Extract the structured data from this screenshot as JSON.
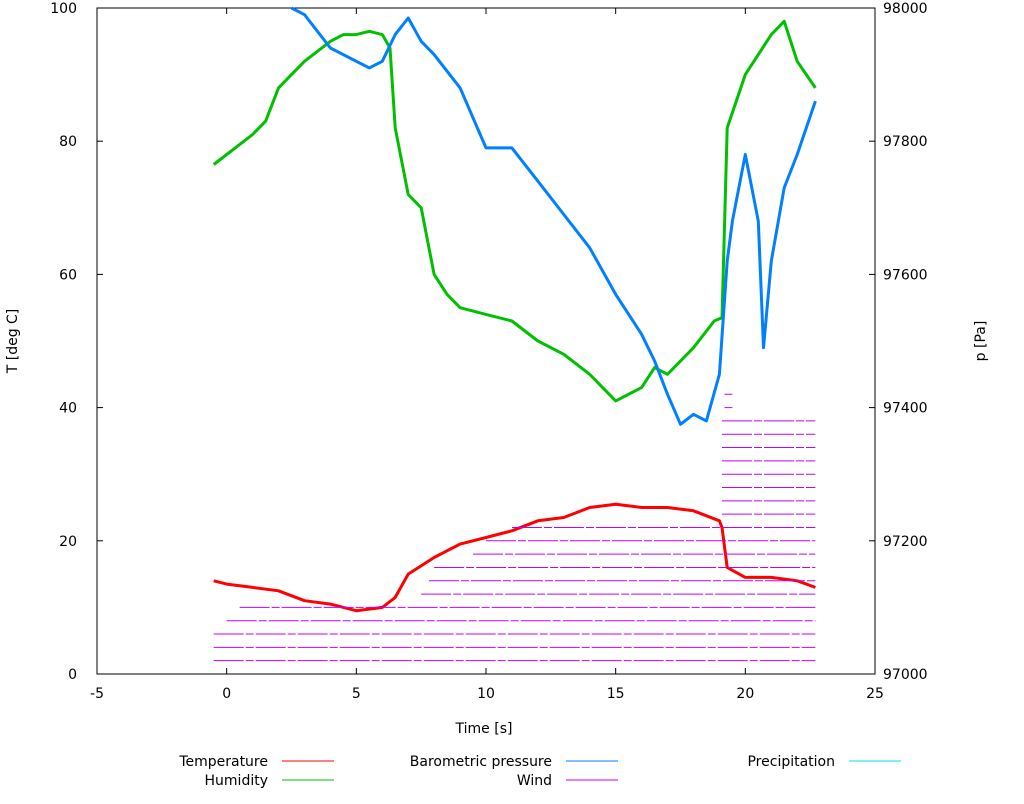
{
  "chart_data": {
    "type": "line",
    "xlabel": "Time [s]",
    "ylabel": "T [deg C]",
    "y2label": "p [Pa]",
    "xlim": [
      -5,
      25
    ],
    "ylim": [
      0,
      100
    ],
    "y2lim": [
      97000,
      98000
    ],
    "xticks": [
      "-5",
      "0",
      "5",
      "10",
      "15",
      "20",
      "25"
    ],
    "yticks": [
      "0",
      "20",
      "40",
      "60",
      "80",
      "100"
    ],
    "y2ticks": [
      "97000",
      "97200",
      "97400",
      "97600",
      "97800",
      "98000"
    ],
    "grid": false,
    "legend_placement": "bottom",
    "series": [
      {
        "name": "Temperature",
        "color": "#ff0000",
        "axis": "y",
        "x": [
          -0.5,
          0,
          1,
          2,
          3,
          4,
          5,
          6,
          6.5,
          7,
          8,
          9,
          10,
          11,
          12,
          13,
          14,
          15,
          16,
          17,
          18,
          19,
          19.1,
          19.3,
          20,
          21,
          22,
          22.7
        ],
        "y": [
          14,
          13.5,
          13,
          12.5,
          11,
          10.5,
          9.5,
          10,
          11.5,
          15,
          17.5,
          19.5,
          20.5,
          21.5,
          23,
          23.5,
          25,
          25.5,
          25,
          25,
          24.5,
          23,
          22,
          16,
          14.5,
          14.5,
          14,
          13
        ]
      },
      {
        "name": "Humidity",
        "color": "#00c000",
        "axis": "y",
        "x": [
          -0.5,
          0,
          1,
          1.5,
          2,
          2.5,
          3,
          4,
          4.5,
          5,
          5.5,
          6,
          6.3,
          6.5,
          7,
          7.5,
          8,
          8.5,
          9,
          10,
          11,
          12,
          13,
          14,
          15,
          16,
          16.5,
          17,
          18,
          18.8,
          19.1,
          19.3,
          20,
          21,
          21.5,
          22,
          22.7
        ],
        "y": [
          76.5,
          78,
          81,
          83,
          88,
          90,
          92,
          95,
          96,
          96,
          96.5,
          96,
          94,
          82,
          72,
          70,
          60,
          57,
          55,
          54,
          53,
          50,
          48,
          45,
          41,
          43,
          46,
          45,
          49,
          53,
          53.5,
          82,
          90,
          96,
          98,
          92,
          88
        ]
      },
      {
        "name": "Barometric pressure",
        "color": "#0080ff",
        "axis": "y2",
        "x": [
          2.5,
          3,
          4,
          5,
          5.5,
          6,
          6.5,
          7,
          7.5,
          8,
          9,
          10,
          11,
          12,
          13,
          14,
          15,
          16,
          16.5,
          17,
          17.5,
          18,
          18.5,
          19,
          19.3,
          19.5,
          20,
          20.5,
          20.7,
          21,
          21.5,
          22,
          22.7
        ],
        "y": [
          98000,
          97990,
          97940,
          97920,
          97910,
          97920,
          97960,
          97985,
          97950,
          97930,
          97880,
          97790,
          97790,
          97740,
          97690,
          97640,
          97570,
          97510,
          97470,
          97420,
          97375,
          97390,
          97380,
          97450,
          97620,
          97680,
          97780,
          97680,
          97490,
          97620,
          97730,
          97780,
          97860
        ]
      },
      {
        "name": "Wind",
        "color": "#c000ff",
        "axis": "y",
        "levels": [
          2,
          4,
          6,
          8,
          10,
          12,
          14,
          16,
          18,
          20,
          22,
          24,
          26,
          28,
          30,
          32,
          34,
          36,
          38,
          40,
          42
        ],
        "x_start": [
          -0.5,
          -0.5,
          -0.5,
          0,
          0.5,
          7.5,
          7.8,
          8,
          9.5,
          10,
          11,
          19.1,
          19.1,
          19.1,
          19.1,
          19.1,
          19.1,
          19.1,
          19.1,
          19.2,
          19.2
        ],
        "x_end": [
          22.7,
          22.7,
          22.7,
          22.7,
          22.7,
          22.7,
          22.7,
          22.7,
          22.7,
          22.7,
          22.7,
          22.7,
          22.7,
          22.7,
          22.7,
          22.7,
          22.7,
          22.7,
          22.7,
          19.5,
          19.5
        ]
      },
      {
        "name": "Precipitation",
        "color": "#00e0e0",
        "axis": "y",
        "x": [],
        "y": []
      }
    ]
  }
}
